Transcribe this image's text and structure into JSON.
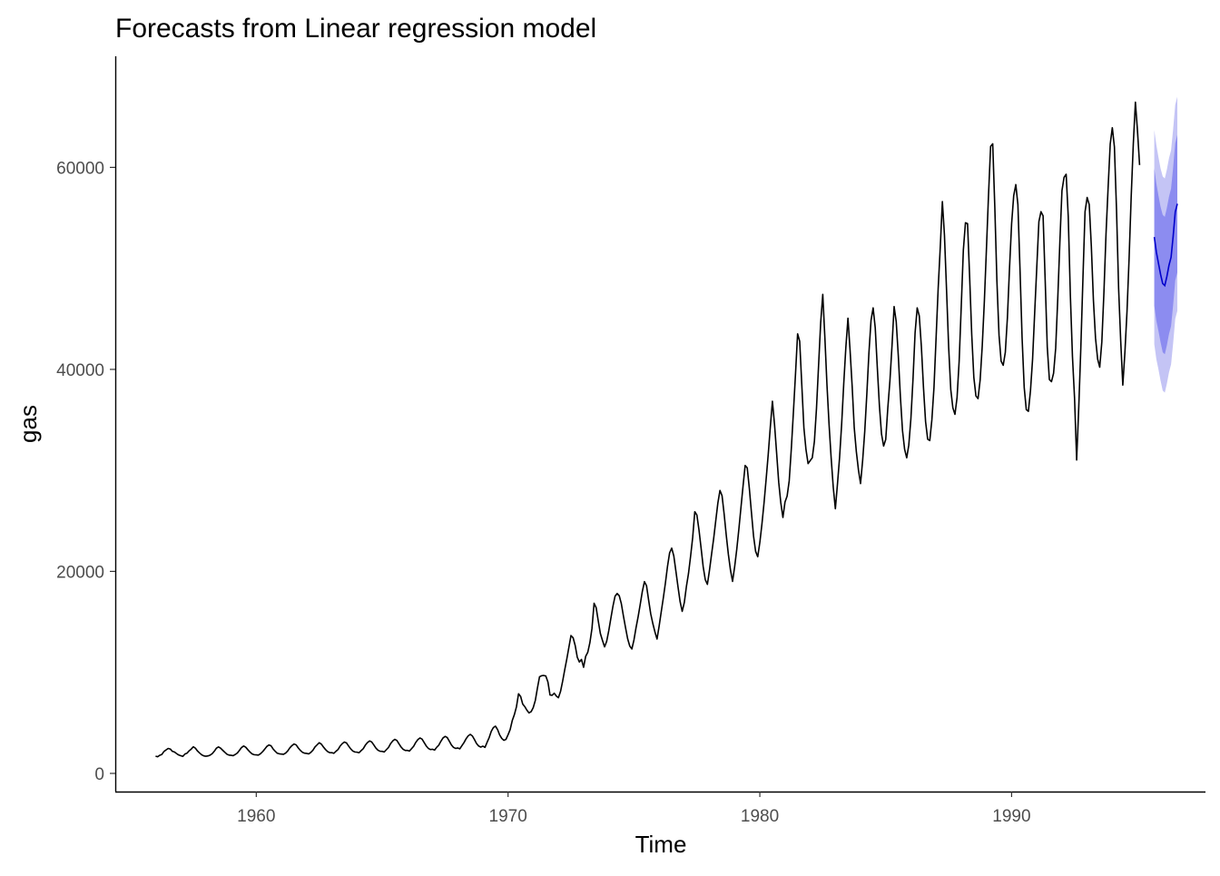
{
  "chart_data": {
    "type": "line",
    "title": "Forecasts from Linear regression model",
    "xlabel": "Time",
    "ylabel": "gas",
    "xlim": [
      1954.4,
      1997.7
    ],
    "ylim": [
      -1800,
      71000
    ],
    "xticks": [
      1960,
      1970,
      1980,
      1990
    ],
    "yticks": [
      0,
      20000,
      40000,
      60000
    ],
    "xtick_labels": [
      "1960",
      "1970",
      "1980",
      "1990"
    ],
    "ytick_labels": [
      "0",
      "20000",
      "40000",
      "60000"
    ],
    "grid": false,
    "legend": "none",
    "colors": {
      "series": "#000000",
      "forecast": "#0000cc",
      "interval_80": "#8c8cf0",
      "interval_95": "#c4c4f5"
    },
    "series": [
      {
        "frequency": 12,
        "start": 1956.0,
        "values": [
          1709,
          1646,
          1794,
          1878,
          2173,
          2321,
          2468,
          2416,
          2184,
          2121,
          1962,
          1825,
          1751,
          1688,
          1920,
          2004,
          2236,
          2404,
          2636,
          2489,
          2215,
          2015,
          1838,
          1736,
          1701,
          1732,
          1810,
          1952,
          2198,
          2501,
          2622,
          2498,
          2289,
          2090,
          1899,
          1812,
          1786,
          1754,
          1874,
          2018,
          2286,
          2567,
          2710,
          2588,
          2340,
          2117,
          1928,
          1852,
          1835,
          1812,
          1948,
          2146,
          2396,
          2664,
          2812,
          2741,
          2426,
          2191,
          1997,
          1938,
          1911,
          1893,
          2015,
          2232,
          2535,
          2754,
          2913,
          2824,
          2527,
          2276,
          2091,
          2003,
          1980,
          1930,
          2081,
          2291,
          2617,
          2829,
          3038,
          2904,
          2614,
          2363,
          2160,
          2056,
          2050,
          1990,
          2190,
          2375,
          2716,
          2950,
          3104,
          3018,
          2711,
          2431,
          2216,
          2122,
          2098,
          2046,
          2257,
          2450,
          2802,
          3051,
          3215,
          3116,
          2823,
          2512,
          2296,
          2193,
          2182,
          2123,
          2345,
          2561,
          2938,
          3205,
          3370,
          3259,
          2937,
          2614,
          2388,
          2274,
          2276,
          2217,
          2445,
          2681,
          3061,
          3345,
          3505,
          3396,
          3061,
          2719,
          2478,
          2365,
          2390,
          2311,
          2587,
          2802,
          3187,
          3508,
          3664,
          3553,
          3193,
          2816,
          2578,
          2472,
          2518,
          2434,
          2743,
          3048,
          3429,
          3716,
          3862,
          3702,
          3344,
          2954,
          2712,
          2606,
          2700,
          2573,
          3075,
          3546,
          4163,
          4534,
          4678,
          4344,
          3807,
          3463,
          3273,
          3369,
          3826,
          4344,
          5231,
          5812,
          6587,
          7884,
          7616,
          6857,
          6603,
          6250,
          5986,
          6112,
          6513,
          7228,
          8442,
          9561,
          9672,
          9695,
          9640,
          9054,
          7760,
          7732,
          7940,
          7661,
          7487,
          8106,
          9110,
          10240,
          11325,
          12488,
          13648,
          13433,
          12659,
          11497,
          11030,
          11284,
          10508,
          11596,
          11996,
          12943,
          14357,
          16843,
          16402,
          15084,
          13851,
          13166,
          12526,
          13074,
          14131,
          15356,
          16559,
          17546,
          17811,
          17586,
          16796,
          15571,
          14423,
          13330,
          12615,
          12317,
          13207,
          14429,
          15520,
          16733,
          18014,
          18985,
          18580,
          17150,
          15792,
          14839,
          14008,
          13305,
          14566,
          15982,
          17372,
          18854,
          20506,
          21832,
          22302,
          21534,
          20020,
          18468,
          17009,
          16045,
          16906,
          18497,
          19787,
          21497,
          23367,
          25905,
          25580,
          24106,
          22320,
          20468,
          19182,
          18716,
          20105,
          21703,
          23254,
          25029,
          26768,
          28016,
          27491,
          25650,
          23576,
          21691,
          20145,
          19011,
          20459,
          22168,
          24172,
          26316,
          28443,
          30486,
          30249,
          28227,
          25840,
          23503,
          21974,
          21452,
          22856,
          24681,
          26764,
          29112,
          31582,
          34318,
          36847,
          34562,
          31729,
          28831,
          26792,
          25342,
          26871,
          27453,
          28963,
          32118,
          35746,
          39527,
          43520,
          42786,
          38463,
          34225,
          32059,
          30672,
          30963,
          31248,
          32856,
          36127,
          40385,
          44612,
          47430,
          43154,
          38465,
          34528,
          31213,
          28316,
          26202,
          28642,
          31247,
          34587,
          38614,
          42188,
          45064,
          41927,
          38352,
          34218,
          31856,
          30051,
          28692,
          30982,
          33851,
          37562,
          41648,
          44852,
          46087,
          44126,
          40153,
          36384,
          33597,
          32412,
          33056,
          36192,
          38862,
          42358,
          46219,
          44725,
          41346,
          37284,
          33942,
          32096,
          31244,
          32513,
          35128,
          39017,
          43624,
          46087,
          45286,
          42231,
          38192,
          34820,
          33084,
          32956,
          35017,
          38214,
          43085,
          48024,
          52113,
          56614,
          53268,
          47834,
          42185,
          38012,
          36197,
          35548,
          37206,
          40814,
          46236,
          51815,
          54518,
          54427,
          49135,
          43428,
          39204,
          37375,
          37102,
          38946,
          42316,
          46687,
          51914,
          57281,
          62078,
          62334,
          56023,
          48715,
          43402,
          40812,
          40406,
          41684,
          45116,
          50017,
          54426,
          57198,
          58294,
          56315,
          49918,
          43117,
          38218,
          36014,
          35847,
          37906,
          41024,
          45614,
          50112,
          54628,
          55612,
          55207,
          48836,
          42216,
          38994,
          38784,
          39617,
          42085,
          47018,
          52614,
          57698,
          59012,
          59316,
          55124,
          47318,
          41285,
          37154,
          31032,
          36214,
          42185,
          49018,
          55614,
          57021,
          56314,
          52182,
          46816,
          43084,
          41026,
          40218,
          42716,
          47615,
          53424,
          58018,
          62316,
          63923,
          62015,
          55821,
          48016,
          42812,
          38451,
          41684,
          45718,
          51027,
          57124,
          62316,
          66451,
          63618,
          60228
        ]
      },
      {
        "name": "forecast",
        "frequency": 12,
        "start": 1995.667,
        "values": [
          53100,
          51600,
          50500,
          49400,
          48500,
          48300,
          49200,
          50300,
          51100,
          53200,
          55600,
          56400
        ],
        "lo80": [
          46300,
          44800,
          43800,
          42700,
          41700,
          41500,
          42400,
          43500,
          44300,
          46400,
          48800,
          49600
        ],
        "hi80": [
          59900,
          58400,
          57200,
          56100,
          55300,
          55100,
          56000,
          57100,
          57900,
          60000,
          62400,
          63200
        ],
        "lo95": [
          42500,
          41000,
          40000,
          38900,
          37900,
          37700,
          38600,
          39700,
          40500,
          42600,
          45000,
          45800
        ],
        "hi95": [
          63700,
          62200,
          61000,
          59900,
          59100,
          58900,
          59800,
          60900,
          61700,
          63800,
          66200,
          67000
        ]
      }
    ]
  }
}
